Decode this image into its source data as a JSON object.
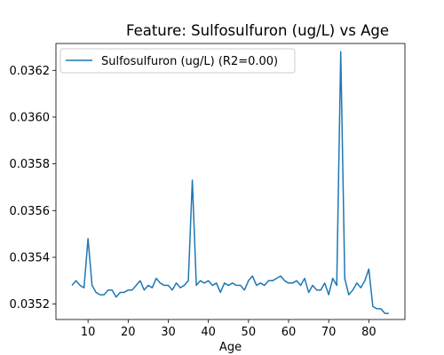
{
  "chart_data": {
    "type": "line",
    "title": "Feature: Sulfosulfuron (ug/L) vs Age",
    "xlabel": "Age",
    "ylabel": "",
    "xlim": [
      2.0,
      89.0
    ],
    "ylim": [
      0.035134,
      0.036315
    ],
    "xticks": [
      10,
      20,
      30,
      40,
      50,
      60,
      70,
      80
    ],
    "xtick_labels": [
      "10",
      "20",
      "30",
      "40",
      "50",
      "60",
      "70",
      "80"
    ],
    "yticks": [
      0.0352,
      0.0354,
      0.0356,
      0.0358,
      0.036,
      0.0362
    ],
    "ytick_labels": [
      "0.0352",
      "0.0354",
      "0.0356",
      "0.0358",
      "0.0360",
      "0.0362"
    ],
    "grid": false,
    "legend_position": "upper-left",
    "series": [
      {
        "name": "Sulfosulfuron (ug/L) (R2=0.00)",
        "color": "#1f77b4",
        "x": [
          6,
          7,
          8,
          9,
          10,
          11,
          12,
          13,
          14,
          15,
          16,
          17,
          18,
          19,
          20,
          21,
          22,
          23,
          24,
          25,
          26,
          27,
          28,
          29,
          30,
          31,
          32,
          33,
          34,
          35,
          36,
          37,
          38,
          39,
          40,
          41,
          42,
          43,
          44,
          45,
          46,
          47,
          48,
          49,
          50,
          51,
          52,
          53,
          54,
          55,
          56,
          57,
          58,
          59,
          60,
          61,
          62,
          63,
          64,
          65,
          66,
          67,
          68,
          69,
          70,
          71,
          72,
          73,
          74,
          75,
          76,
          77,
          78,
          79,
          80,
          81,
          82,
          83,
          84,
          85
        ],
        "y": [
          0.03528,
          0.0353,
          0.03528,
          0.03527,
          0.03548,
          0.03528,
          0.03525,
          0.03524,
          0.03524,
          0.03526,
          0.03526,
          0.03523,
          0.03525,
          0.03525,
          0.03526,
          0.03526,
          0.03528,
          0.0353,
          0.03526,
          0.03528,
          0.03527,
          0.03531,
          0.03529,
          0.03528,
          0.03528,
          0.03526,
          0.03529,
          0.03527,
          0.03528,
          0.0353,
          0.03573,
          0.03528,
          0.0353,
          0.03529,
          0.0353,
          0.03528,
          0.03529,
          0.03525,
          0.03529,
          0.03528,
          0.03529,
          0.03528,
          0.03528,
          0.03526,
          0.0353,
          0.03532,
          0.03528,
          0.03529,
          0.03528,
          0.0353,
          0.0353,
          0.03531,
          0.03532,
          0.0353,
          0.03529,
          0.03529,
          0.0353,
          0.03528,
          0.03531,
          0.03525,
          0.03528,
          0.03526,
          0.03526,
          0.03529,
          0.03524,
          0.03531,
          0.03528,
          0.03628,
          0.03531,
          0.03524,
          0.03526,
          0.03529,
          0.03527,
          0.0353,
          0.03535,
          0.03519,
          0.03518,
          0.03518,
          0.03516,
          0.03516
        ]
      }
    ]
  }
}
